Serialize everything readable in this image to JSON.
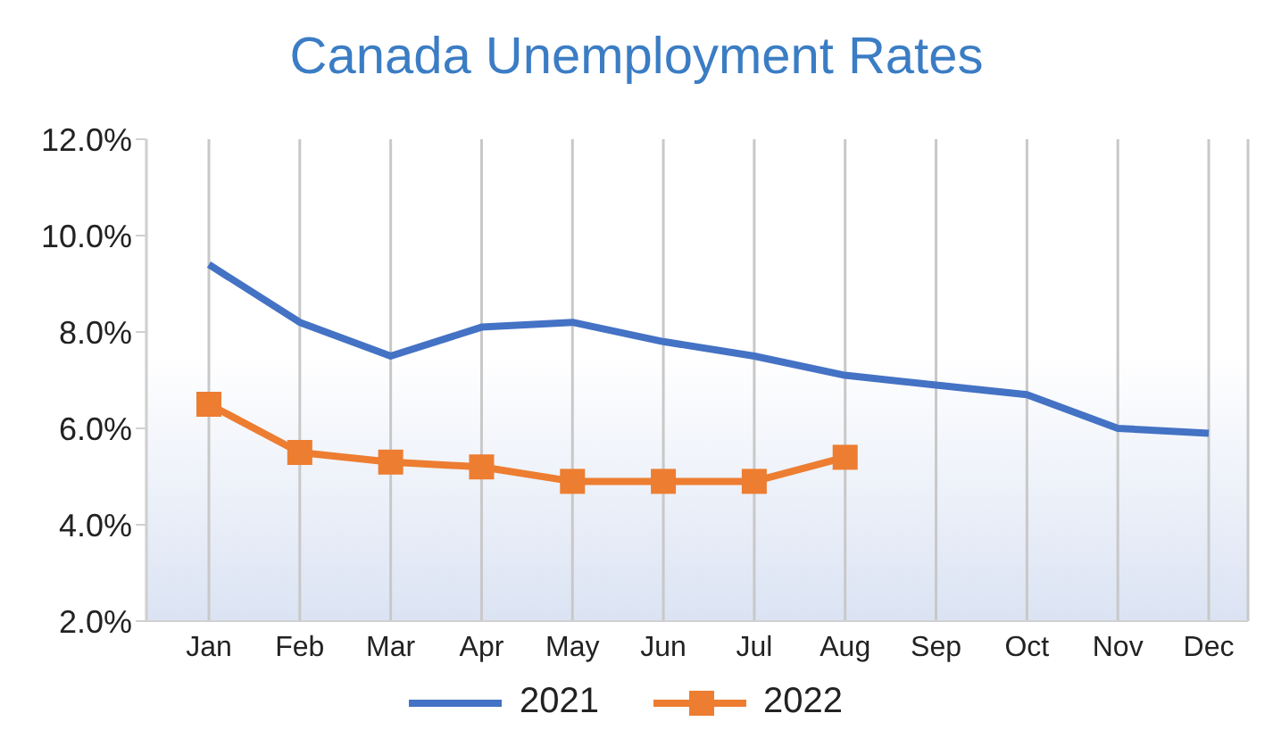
{
  "chart_data": {
    "type": "line",
    "title": "Canada Unemployment Rates",
    "categories": [
      "Jan",
      "Feb",
      "Mar",
      "Apr",
      "May",
      "Jun",
      "Jul",
      "Aug",
      "Sep",
      "Oct",
      "Nov",
      "Dec"
    ],
    "series": [
      {
        "name": "2021",
        "color": "#4472c4",
        "marker": "none",
        "values": [
          9.4,
          8.2,
          7.5,
          8.1,
          8.2,
          7.8,
          7.5,
          7.1,
          6.9,
          6.7,
          6.0,
          5.9
        ]
      },
      {
        "name": "2022",
        "color": "#ed7d31",
        "marker": "square",
        "values": [
          6.5,
          5.5,
          5.3,
          5.2,
          4.9,
          4.9,
          4.9,
          5.4,
          null,
          null,
          null,
          null
        ]
      }
    ],
    "ylim": [
      2,
      12
    ],
    "yticks": [
      {
        "value": 2,
        "label": "2.0%"
      },
      {
        "value": 4,
        "label": "4.0%"
      },
      {
        "value": 6,
        "label": "6.0%"
      },
      {
        "value": 8,
        "label": "8.0%"
      },
      {
        "value": 10,
        "label": "10.0%"
      },
      {
        "value": 12,
        "label": "12.0%"
      }
    ],
    "grid": "x",
    "legend": "bottom"
  }
}
